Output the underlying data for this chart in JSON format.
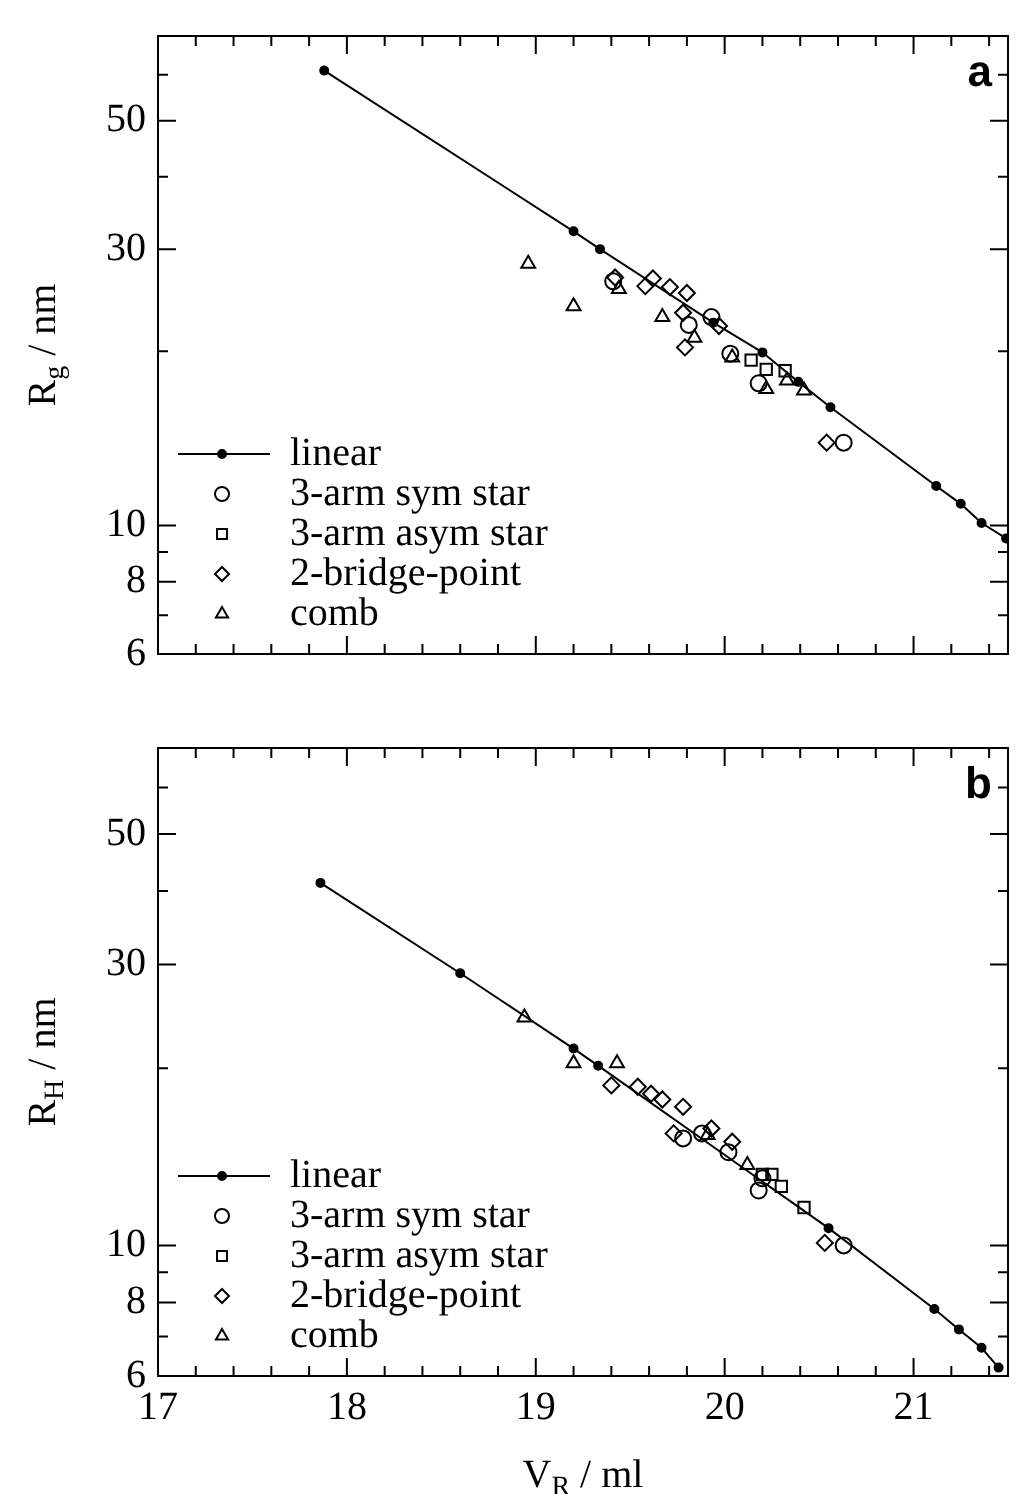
{
  "chart_data": [
    {
      "type": "scatter",
      "ylabel": "R$_{g}$ / nm",
      "annotations": [
        "a"
      ],
      "log": "y",
      "legend": "bottom left",
      "tick_labels": "y",
      "xlim": [
        17,
        21.5
      ],
      "xticks": [
        17,
        {
          "value": 17.2,
          "label": null
        },
        {
          "value": 17.4,
          "label": null
        },
        {
          "value": 17.6,
          "label": null
        },
        {
          "value": 17.8,
          "label": null
        },
        18,
        {
          "value": 18.2,
          "label": null
        },
        {
          "value": 18.4,
          "label": null
        },
        {
          "value": 18.6,
          "label": null
        },
        {
          "value": 18.8,
          "label": null
        },
        19,
        {
          "value": 19.2,
          "label": null
        },
        {
          "value": 19.4,
          "label": null
        },
        {
          "value": 19.6,
          "label": null
        },
        {
          "value": 19.8,
          "label": null
        },
        20,
        {
          "value": 20.2,
          "label": null
        },
        {
          "value": 20.4,
          "label": null
        },
        {
          "value": 20.6,
          "label": null
        },
        {
          "value": 20.8,
          "label": null
        },
        21,
        {
          "value": 21.2,
          "label": null
        },
        {
          "value": 21.4,
          "label": null
        }
      ],
      "ylim": [
        6,
        70
      ],
      "yticks": [
        6,
        {
          "value": 7,
          "label": null
        },
        8,
        {
          "value": 9,
          "label": null
        },
        10,
        {
          "value": 20,
          "label": null
        },
        30,
        {
          "value": 40,
          "label": null
        },
        50,
        {
          "value": 60,
          "label": null
        }
      ],
      "series": [
        {
          "name": "linear",
          "type": "line",
          "marker": "circle",
          "color": "#000000",
          "x": [
            17.88,
            19.2,
            19.34,
            19.94,
            20.2,
            20.39,
            20.56,
            21.12,
            21.25,
            21.36,
            21.49
          ],
          "values": [
            61,
            32.2,
            30,
            22.4,
            19.9,
            17.7,
            16,
            11.7,
            10.9,
            10.1,
            9.5
          ]
        },
        {
          "name": "3-arm sym star",
          "type": "scatter",
          "marker": "circle",
          "color": "#000000",
          "x": [
            19.41,
            19.81,
            19.93,
            20.03,
            20.18,
            20.63
          ],
          "values": [
            26.4,
            22.2,
            22.9,
            19.8,
            17.6,
            13.9
          ]
        },
        {
          "name": "3-arm asym star",
          "type": "scatter",
          "marker": "square",
          "color": "#000000",
          "x": [
            20.14,
            20.22,
            20.32
          ],
          "values": [
            19.3,
            18.6,
            18.5
          ]
        },
        {
          "name": "2-bridge-point",
          "type": "scatter",
          "marker": "diamond",
          "color": "#000000",
          "x": [
            19.42,
            19.58,
            19.62,
            19.71,
            19.8,
            19.78,
            19.79,
            19.97,
            20.54
          ],
          "values": [
            26.8,
            25.9,
            26.7,
            25.8,
            25.2,
            23.3,
            20.3,
            22.1,
            13.9
          ]
        },
        {
          "name": "comb",
          "type": "scatter",
          "marker": "triangle",
          "color": "#000000",
          "x": [
            18.96,
            19.2,
            19.44,
            19.67,
            19.84,
            20.04,
            20.22,
            20.33,
            20.42
          ],
          "values": [
            28.3,
            23.9,
            25.6,
            22.9,
            21.1,
            19.5,
            17.2,
            17.8,
            17.1
          ]
        }
      ]
    },
    {
      "type": "scatter",
      "ylabel": "R$_{H}$ / nm",
      "xlabel": "V$_{R}$ / ml",
      "annotations": [
        "b"
      ],
      "log": "y",
      "legend": "bottom left",
      "xlim": [
        17,
        21.5
      ],
      "xticks": [
        17,
        {
          "value": 17.2,
          "label": null
        },
        {
          "value": 17.4,
          "label": null
        },
        {
          "value": 17.6,
          "label": null
        },
        {
          "value": 17.8,
          "label": null
        },
        18,
        {
          "value": 18.2,
          "label": null
        },
        {
          "value": 18.4,
          "label": null
        },
        {
          "value": 18.6,
          "label": null
        },
        {
          "value": 18.8,
          "label": null
        },
        19,
        {
          "value": 19.2,
          "label": null
        },
        {
          "value": 19.4,
          "label": null
        },
        {
          "value": 19.6,
          "label": null
        },
        {
          "value": 19.8,
          "label": null
        },
        20,
        {
          "value": 20.2,
          "label": null
        },
        {
          "value": 20.4,
          "label": null
        },
        {
          "value": 20.6,
          "label": null
        },
        {
          "value": 20.8,
          "label": null
        },
        21,
        {
          "value": 21.2,
          "label": null
        },
        {
          "value": 21.4,
          "label": null
        }
      ],
      "ylim": [
        6,
        70
      ],
      "yticks": [
        6,
        {
          "value": 7,
          "label": null
        },
        8,
        {
          "value": 9,
          "label": null
        },
        10,
        {
          "value": 20,
          "label": null
        },
        30,
        {
          "value": 40,
          "label": null
        },
        50,
        {
          "value": 60,
          "label": null
        }
      ],
      "series": [
        {
          "name": "linear",
          "type": "line",
          "marker": "circle",
          "color": "#000000",
          "x": [
            17.86,
            18.6,
            19.2,
            19.33,
            20.55,
            21.11,
            21.24,
            21.36,
            21.45
          ],
          "values": [
            41.3,
            29,
            21.6,
            20.2,
            10.7,
            7.8,
            7.2,
            6.7,
            6.2
          ]
        },
        {
          "name": "3-arm sym star",
          "type": "scatter",
          "marker": "circle",
          "color": "#000000",
          "x": [
            19.78,
            19.88,
            20.02,
            20.2,
            20.18,
            20.63
          ],
          "values": [
            15.2,
            15.5,
            14.4,
            13,
            12.4,
            10
          ]
        },
        {
          "name": "3-arm asym star",
          "type": "scatter",
          "marker": "square",
          "color": "#000000",
          "x": [
            20.2,
            20.25,
            20.3,
            20.42
          ],
          "values": [
            13.2,
            13.2,
            12.6,
            11.6
          ]
        },
        {
          "name": "2-bridge-point",
          "type": "scatter",
          "marker": "diamond",
          "color": "#000000",
          "x": [
            19.4,
            19.54,
            19.61,
            19.67,
            19.78,
            19.73,
            19.93,
            20.04,
            20.53
          ],
          "values": [
            18.7,
            18.6,
            18.1,
            17.7,
            17.2,
            15.5,
            15.8,
            15,
            10.1
          ]
        },
        {
          "name": "comb",
          "type": "scatter",
          "marker": "triangle",
          "color": "#000000",
          "x": [
            18.94,
            19.2,
            19.43,
            19.91,
            20.12
          ],
          "values": [
            24.4,
            20.4,
            20.4,
            15.4,
            13.7
          ]
        }
      ]
    }
  ]
}
